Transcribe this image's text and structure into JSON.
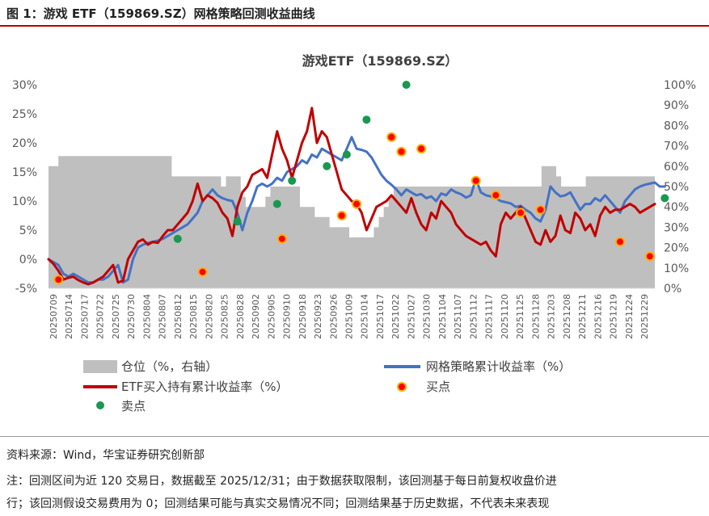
{
  "figure": {
    "header": "图 1：游戏 ETF（159869.SZ）网格策略回测收益曲线"
  },
  "chart_data": {
    "type": "line",
    "title": "游戏ETF（159869.SZ）",
    "x_tick_labels": [
      "20250709",
      "20250714",
      "20250717",
      "20250722",
      "20250725",
      "20250730",
      "20250804",
      "20250807",
      "20250812",
      "20250815",
      "20250820",
      "20250825",
      "20250828",
      "20250902",
      "20250905",
      "20250910",
      "20250918",
      "20250923",
      "20250926",
      "20251009",
      "20251014",
      "20251017",
      "20251022",
      "20251027",
      "20251030",
      "20251104",
      "20251107",
      "20251112",
      "20251117",
      "20251120",
      "20251125",
      "20251128",
      "20251203",
      "20251208",
      "20251211",
      "20251216",
      "20251219",
      "20251224",
      "20251229"
    ],
    "y_left": {
      "ticks": [
        "30%",
        "25%",
        "20%",
        "15%",
        "10%",
        "5%",
        "0%",
        "-5%"
      ],
      "range": [
        -5,
        30
      ]
    },
    "y_right": {
      "ticks": [
        "100%",
        "90%",
        "80%",
        "70%",
        "60%",
        "50%",
        "40%",
        "30%",
        "20%",
        "10%",
        "0%"
      ],
      "range": [
        0,
        100
      ]
    },
    "legend": {
      "position": "bottom",
      "position_label": "仓位（%，右轴）",
      "grid_label": "网格策略累计收益率（%）",
      "etf_label": "ETF买入持有累计收益率（%）",
      "buy_label": "买点",
      "sell_label": "卖点"
    },
    "series": [
      {
        "name": "仓位（%，右轴）",
        "axis": "right",
        "kind": "area",
        "color": "#bfbfbf",
        "values": [
          60,
          60,
          65,
          65,
          65,
          65,
          65,
          65,
          65,
          65,
          65,
          65,
          65,
          65,
          65,
          65,
          65,
          65,
          65,
          65,
          65,
          65,
          65,
          65,
          65,
          55,
          55,
          55,
          55,
          55,
          55,
          55,
          55,
          55,
          55,
          50,
          55,
          55,
          55,
          45,
          40,
          40,
          40,
          40,
          45,
          50,
          50,
          50,
          50,
          50,
          50,
          40,
          40,
          40,
          35,
          35,
          35,
          30,
          30,
          30,
          30,
          25,
          25,
          25,
          25,
          25,
          30,
          35,
          40,
          45,
          50,
          50,
          50,
          50,
          50,
          50,
          50,
          50,
          50,
          50,
          50,
          50,
          50,
          50,
          50,
          50,
          50,
          50,
          50,
          50,
          50,
          50,
          50,
          50,
          50,
          50,
          50,
          50,
          50,
          50,
          60,
          60,
          60,
          55,
          50,
          50,
          50,
          50,
          50,
          55,
          55,
          55,
          55,
          55,
          55,
          55,
          55,
          55,
          55,
          55,
          55,
          55,
          55
        ]
      },
      {
        "name": "网格策略累计收益率（%）",
        "axis": "left",
        "kind": "line",
        "color": "#4472c4",
        "values": [
          0,
          -0.5,
          -1,
          -2.5,
          -3,
          -2.5,
          -3,
          -3.5,
          -4,
          -4,
          -3.5,
          -3.5,
          -3,
          -2,
          -1,
          -4,
          -3.5,
          0,
          2,
          2.5,
          2.8,
          3,
          3.2,
          3.5,
          4,
          4.5,
          5,
          5.5,
          6,
          7,
          8,
          10,
          11,
          12,
          11,
          10.5,
          10.2,
          10,
          8,
          5,
          8,
          10,
          12.5,
          13,
          12.5,
          13,
          14,
          13.5,
          15,
          15.5,
          16,
          17,
          16.5,
          18,
          17.5,
          19,
          18.5,
          18,
          17.5,
          17,
          19,
          21,
          19,
          18.8,
          18.5,
          17.5,
          16,
          14.5,
          13.5,
          12.8,
          12,
          11,
          12,
          11.5,
          11,
          11.2,
          10.5,
          10.8,
          10,
          11.3,
          11,
          12,
          11.5,
          11.2,
          10.6,
          11,
          13.8,
          11.5,
          11,
          10.8,
          10.5,
          10,
          9.8,
          9.6,
          9,
          9.2,
          8.5,
          8,
          7,
          6.5,
          8.5,
          12.5,
          11.5,
          10.8,
          11,
          11.5,
          10,
          8.5,
          9.5,
          9.5,
          10.5,
          10,
          11,
          10,
          9,
          8,
          10,
          11,
          12,
          12.5,
          12.8,
          13,
          13.2,
          12.5,
          12.5
        ]
      },
      {
        "name": "ETF买入持有累计收益率（%）",
        "axis": "left",
        "kind": "line",
        "color": "#c00000",
        "values": [
          0,
          -0.8,
          -2,
          -3.5,
          -3.2,
          -3,
          -3.6,
          -4,
          -4.3,
          -4,
          -3.5,
          -3,
          -2,
          -1,
          -4,
          -3.7,
          0,
          1.5,
          3,
          3.4,
          2.5,
          3,
          2.8,
          4,
          5,
          5,
          6,
          7,
          8,
          10,
          13,
          10,
          11,
          10.5,
          9.7,
          8,
          7,
          4,
          9,
          11.5,
          12.5,
          14.5,
          15,
          15.5,
          14,
          18,
          22,
          19,
          17,
          14,
          17,
          20,
          22,
          26,
          20,
          22,
          21,
          18,
          15,
          12,
          11,
          10,
          9.5,
          8,
          5,
          7,
          9,
          9.5,
          10,
          11,
          10,
          9,
          8,
          10.5,
          8,
          6,
          5,
          8,
          7,
          10,
          9,
          8,
          6,
          5,
          4,
          3.5,
          3,
          2.5,
          3,
          1.5,
          0.5,
          6,
          8,
          7,
          8,
          9,
          7,
          5,
          3,
          2.5,
          5,
          3,
          4,
          7.5,
          5,
          4.5,
          8,
          7,
          5,
          6,
          4,
          7.5,
          9,
          8,
          8.5,
          8.5,
          9,
          9.5,
          9,
          8,
          8.5,
          9,
          9.5
        ]
      },
      {
        "name": "买点",
        "axis": "left",
        "kind": "scatter",
        "color": "#ff0000",
        "outline": "#ffb000",
        "points": [
          [
            2,
            -3.5
          ],
          [
            31,
            -2.2
          ],
          [
            47,
            3.5
          ],
          [
            59,
            7.5
          ],
          [
            62,
            9.5
          ],
          [
            69,
            21
          ],
          [
            71,
            18.5
          ],
          [
            75,
            19
          ],
          [
            86,
            13.5
          ],
          [
            90,
            11
          ],
          [
            95,
            8
          ],
          [
            99,
            8.5
          ],
          [
            115,
            3
          ],
          [
            121,
            0.5
          ],
          [
            135,
            1
          ]
        ]
      },
      {
        "name": "卖点",
        "axis": "left",
        "kind": "scatter",
        "color": "#1a9850",
        "points": [
          [
            26,
            3.5
          ],
          [
            38,
            6.5
          ],
          [
            46,
            9.5
          ],
          [
            49,
            13.5
          ],
          [
            56,
            16
          ],
          [
            60,
            18
          ],
          [
            64,
            24
          ],
          [
            72,
            30
          ],
          [
            124,
            10.5
          ]
        ]
      }
    ]
  },
  "footer": {
    "source": "资料来源：Wind，华宝证券研究创新部",
    "note_line1": "注：回测区间为近 120 交易日，数据截至 2025/12/31；由于数据获取限制，该回测基于每日前复权收盘价进",
    "note_line2": "行；该回测假设交易费用为 0；回测结果可能与真实交易情况不同；回测结果基于历史数据，不代表未来表现"
  }
}
